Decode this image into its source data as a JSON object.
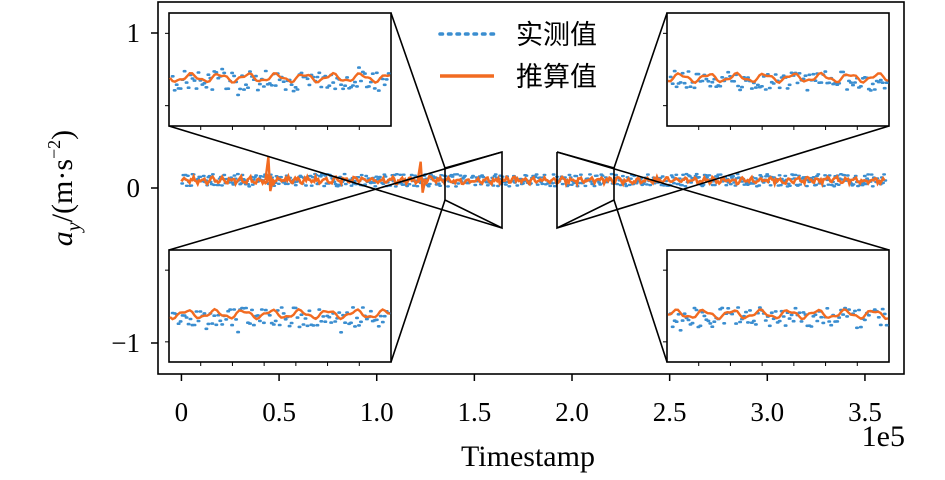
{
  "chart_data": {
    "type": "line",
    "xlabel": "Timestamp",
    "x_offset_label": "1e5",
    "x_scale": 100000,
    "xlim": [
      -0.12,
      3.7
    ],
    "ylim": [
      -1.2,
      1.2
    ],
    "x_ticks": [
      0,
      0.5,
      1.0,
      1.5,
      2.0,
      2.5,
      3.0,
      3.5
    ],
    "x_tick_labels": [
      "0",
      "0.5",
      "1.0",
      "1.5",
      "2.0",
      "2.5",
      "3.0",
      "3.5"
    ],
    "y_ticks": [
      1,
      0,
      -1
    ],
    "y_tick_labels": [
      "1",
      "0",
      "−1"
    ],
    "ylabel": {
      "main": "a",
      "sub": "y",
      "unit_open": "/(m·s",
      "unit_sup": "−2",
      "unit_close": ")"
    },
    "legend": {
      "position": "top-center",
      "entries": [
        {
          "label": "实测值",
          "style": "dotted",
          "color": "#3b8ed0"
        },
        {
          "label": "推算值",
          "style": "solid",
          "color": "#f26b21"
        }
      ]
    },
    "series": [
      {
        "name": "实测值",
        "color": "#3b8ed0",
        "style": "dotted",
        "x_range": [
          0,
          3.6
        ],
        "baseline": 0.05,
        "noise_amplitude": 0.04
      },
      {
        "name": "推算值",
        "color": "#f26b21",
        "style": "solid",
        "x_range": [
          0,
          3.6
        ],
        "baseline": 0.05,
        "noise_amplitude": 0.02,
        "spikes": [
          {
            "x": 0.45,
            "y_max": 0.2,
            "y_min": -0.02
          },
          {
            "x": 1.23,
            "y_max": 0.17,
            "y_min": -0.03
          }
        ]
      }
    ],
    "insets": [
      {
        "corner": "top-left",
        "zoom_x_range": [
          1.35,
          1.65
        ]
      },
      {
        "corner": "bottom-left",
        "zoom_x_range": [
          1.35,
          1.65
        ]
      },
      {
        "corner": "top-right",
        "zoom_x_range": [
          1.92,
          2.24
        ]
      },
      {
        "corner": "bottom-right",
        "zoom_x_range": [
          1.92,
          2.24
        ]
      }
    ]
  }
}
